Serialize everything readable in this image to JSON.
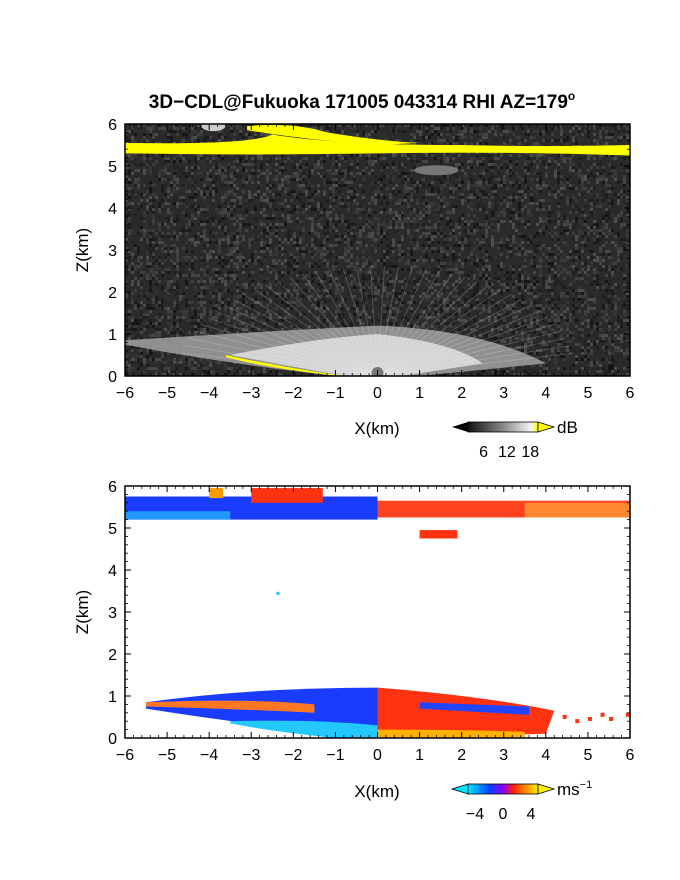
{
  "chart_data": [
    {
      "type": "heatmap",
      "panel": "intensity",
      "title": "3D−CDL@Fukuoka 171005 043314 RHI AZ=179",
      "title_superscript": "o",
      "xlabel": "X(km)",
      "ylabel": "Z(km)",
      "xlim": [
        -6,
        6
      ],
      "ylim": [
        0,
        6
      ],
      "xticks": [
        "−6",
        "−5",
        "−4",
        "−3",
        "−2",
        "−1",
        "0",
        "1",
        "2",
        "3",
        "4",
        "5",
        "6"
      ],
      "yticks": [
        "0",
        "1",
        "2",
        "3",
        "4",
        "5",
        "6"
      ],
      "colorbar": {
        "unit": "dB",
        "ticks": [
          "6",
          "12",
          "18"
        ],
        "tick_values": [
          6,
          12,
          18
        ],
        "range": [
          2,
          20
        ]
      },
      "layers": [
        {
          "name": "cloud layer",
          "x_range": [
            -6,
            6
          ],
          "z_center": 5.4,
          "value_db": 18
        },
        {
          "name": "near-surface echo",
          "x_range": [
            -6,
            4
          ],
          "z_max": 1.1,
          "value_db": 10
        },
        {
          "name": "background noise",
          "value_db": 4
        }
      ]
    },
    {
      "type": "heatmap",
      "panel": "velocity",
      "xlabel": "X(km)",
      "ylabel": "Z(km)",
      "xlim": [
        -6,
        6
      ],
      "ylim": [
        0,
        6
      ],
      "xticks": [
        "−6",
        "−5",
        "−4",
        "−3",
        "−2",
        "−1",
        "0",
        "1",
        "2",
        "3",
        "4",
        "5",
        "6"
      ],
      "yticks": [
        "0",
        "1",
        "2",
        "3",
        "4",
        "5",
        "6"
      ],
      "colorbar": {
        "unit": "ms",
        "unit_superscript": "−1",
        "ticks": [
          "−4",
          "0",
          "4"
        ],
        "tick_values": [
          -4,
          0,
          4
        ],
        "range": [
          -5,
          5
        ]
      },
      "layers": [
        {
          "name": "cloud layer, x < 0",
          "x_range": [
            -6,
            0
          ],
          "z_range": [
            5.2,
            5.7
          ],
          "velocity": -3
        },
        {
          "name": "cloud layer, x > 0",
          "x_range": [
            0,
            6
          ],
          "z_range": [
            5.2,
            5.7
          ],
          "velocity": 3
        },
        {
          "name": "near-surface echo, x < 0",
          "x_range": [
            -5.5,
            0
          ],
          "z_range": [
            0,
            1.2
          ],
          "velocity": -3
        },
        {
          "name": "near-surface echo, x > 0",
          "x_range": [
            0,
            6
          ],
          "z_range": [
            0,
            1.2
          ],
          "velocity": 3
        }
      ]
    }
  ]
}
